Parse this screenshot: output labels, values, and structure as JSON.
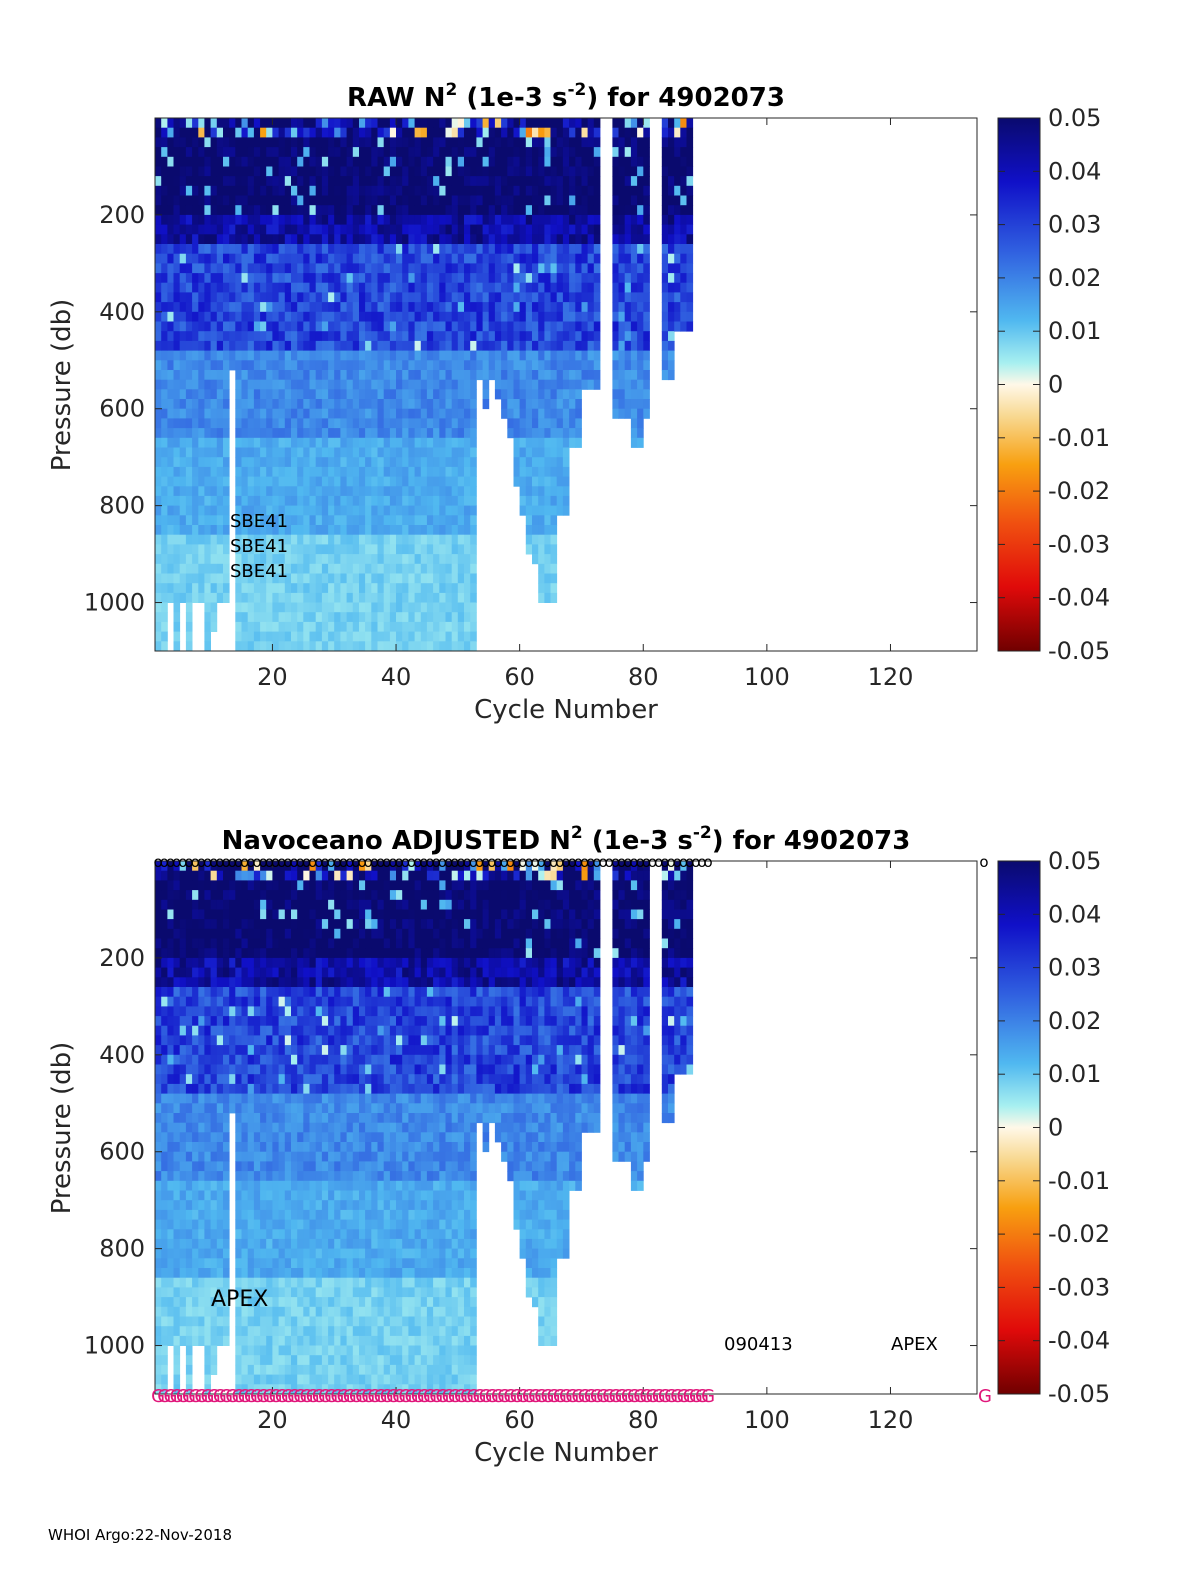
{
  "charts": [
    {
      "title_pre": "RAW N",
      "title_sup1": "2",
      "title_mid": " (1e-3 s",
      "title_sup2": "-2",
      "title_post": ") for 4902073",
      "annotations": [
        "SBE41",
        "SBE41",
        "SBE41"
      ]
    },
    {
      "title_pre": "Navoceano  ADJUSTED N",
      "title_sup1": "2",
      "title_mid": " (1e-3 s",
      "title_sup2": "-2",
      "title_post": ") for 4902073",
      "annotations": [
        "APEX",
        "090413",
        "APEX"
      ],
      "top_marker": "o",
      "bottom_marker": "G"
    }
  ],
  "footer": "WHOI Argo:22-Nov-2018",
  "colors": {
    "marker_g": "#e0157a",
    "frame": "#262626"
  },
  "chart_data": [
    {
      "type": "heatmap",
      "title": "RAW N^2 (1e-3 s^-2) for 4902073",
      "xlabel": "Cycle Number",
      "ylabel": "Pressure (db)",
      "xlim": [
        1,
        134
      ],
      "ylim": [
        1100,
        0
      ],
      "xticks": [
        20,
        40,
        60,
        80,
        100,
        120
      ],
      "yticks": [
        200,
        400,
        600,
        800,
        1000
      ],
      "colorbar": {
        "range": [
          -0.05,
          0.05
        ],
        "ticks": [
          "0.05",
          "0.04",
          "0.03",
          "0.02",
          "0.01",
          "0",
          "-0.01",
          "-0.02",
          "-0.03",
          "-0.04",
          "-0.05"
        ]
      },
      "profiles_last_cycle": 87,
      "missing_cycles": [
        73,
        74,
        81,
        82
      ],
      "annotations": [
        "SBE41",
        "SBE41",
        "SBE41"
      ]
    },
    {
      "type": "heatmap",
      "title": "Navoceano ADJUSTED N^2 (1e-3 s^-2) for 4902073",
      "xlabel": "Cycle Number",
      "ylabel": "Pressure (db)",
      "xlim": [
        1,
        134
      ],
      "ylim": [
        1100,
        0
      ],
      "xticks": [
        20,
        40,
        60,
        80,
        100,
        120
      ],
      "yticks": [
        200,
        400,
        600,
        800,
        1000
      ],
      "colorbar": {
        "range": [
          -0.05,
          0.05
        ],
        "ticks": [
          "0.05",
          "0.04",
          "0.03",
          "0.02",
          "0.01",
          "0",
          "-0.01",
          "-0.02",
          "-0.03",
          "-0.04",
          "-0.05"
        ]
      },
      "profiles_last_cycle": 87,
      "missing_cycles": [
        73,
        74,
        81,
        82
      ],
      "qc_marker_cycles_end": 90,
      "annotations": [
        "APEX",
        "090413",
        "APEX"
      ]
    }
  ]
}
